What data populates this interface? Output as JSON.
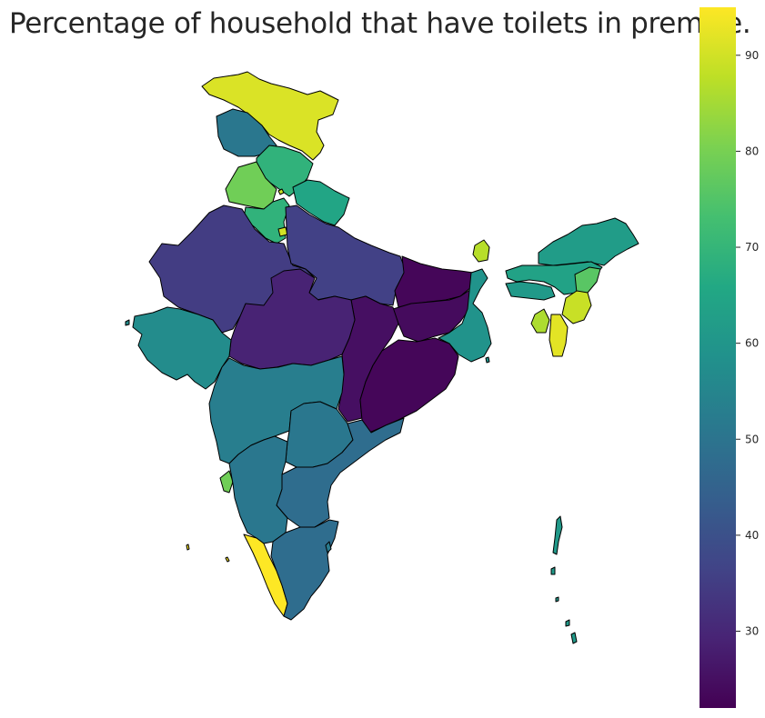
{
  "title": "Percentage of household that have toilets in premise.",
  "colorbar": {
    "cmap": "viridis",
    "min": 22,
    "max": 95,
    "ticks": [
      30,
      40,
      50,
      60,
      70,
      80,
      90
    ]
  },
  "regions": [
    {
      "id": "jammu-kashmir",
      "value": 91
    },
    {
      "id": "ladakh-west",
      "value": 51
    },
    {
      "id": "himachal-pradesh",
      "value": 69
    },
    {
      "id": "punjab",
      "value": 79
    },
    {
      "id": "chandigarh",
      "value": 89
    },
    {
      "id": "uttarakhand",
      "value": 65
    },
    {
      "id": "haryana",
      "value": 69
    },
    {
      "id": "delhi",
      "value": 90
    },
    {
      "id": "rajasthan",
      "value": 35
    },
    {
      "id": "uttar-pradesh",
      "value": 36
    },
    {
      "id": "bihar",
      "value": 23
    },
    {
      "id": "sikkim",
      "value": 87
    },
    {
      "id": "arunachal-pradesh",
      "value": 62
    },
    {
      "id": "assam",
      "value": 64
    },
    {
      "id": "nagaland",
      "value": 76
    },
    {
      "id": "manipur",
      "value": 89
    },
    {
      "id": "mizoram",
      "value": 92
    },
    {
      "id": "tripura",
      "value": 86
    },
    {
      "id": "meghalaya",
      "value": 61
    },
    {
      "id": "west-bengal",
      "value": 59
    },
    {
      "id": "jharkhand",
      "value": 24
    },
    {
      "id": "odisha",
      "value": 23
    },
    {
      "id": "chhattisgarh",
      "value": 25
    },
    {
      "id": "madhya-pradesh",
      "value": 29
    },
    {
      "id": "gujarat",
      "value": 57
    },
    {
      "id": "maharashtra",
      "value": 53
    },
    {
      "id": "telangana",
      "value": 51
    },
    {
      "id": "andhra-pradesh",
      "value": 48
    },
    {
      "id": "goa",
      "value": 79
    },
    {
      "id": "karnataka",
      "value": 51
    },
    {
      "id": "kerala",
      "value": 95
    },
    {
      "id": "tamil-nadu",
      "value": 48
    },
    {
      "id": "puducherry",
      "value": 52
    },
    {
      "id": "andaman-nicobar",
      "value": 61
    },
    {
      "id": "lakshadweep",
      "value": 95
    }
  ]
}
